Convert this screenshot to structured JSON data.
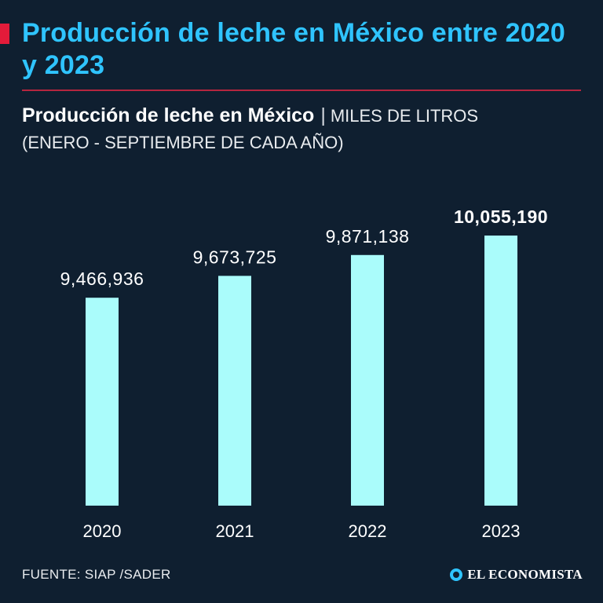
{
  "header": {
    "title": "Producción de leche en México entre 2020 y 2023",
    "accent_color": "#e31b3a",
    "title_color": "#2fc4ff"
  },
  "chart_data": {
    "type": "bar",
    "title": "Producción de leche en México",
    "unit": "MILES DE LITROS",
    "subtitle": "(ENERO - SEPTIEMBRE DE CADA AÑO)",
    "categories": [
      "2020",
      "2021",
      "2022",
      "2023"
    ],
    "values": [
      9466936,
      9673725,
      9871138,
      10055190
    ],
    "value_labels": [
      "9,466,936",
      "9,673,725",
      "9,871,138",
      "10,055,190"
    ],
    "emphasized_index": 3,
    "bar_color": "#aafcfb",
    "ylim": [
      7500000,
      10055190
    ],
    "grid": false,
    "xlabel": "",
    "ylabel": ""
  },
  "footer": {
    "source": "FUENTE: SIAP /SADER",
    "brand": "EL ECONOMISTA",
    "brand_icon": "el-economista-logo-icon"
  }
}
